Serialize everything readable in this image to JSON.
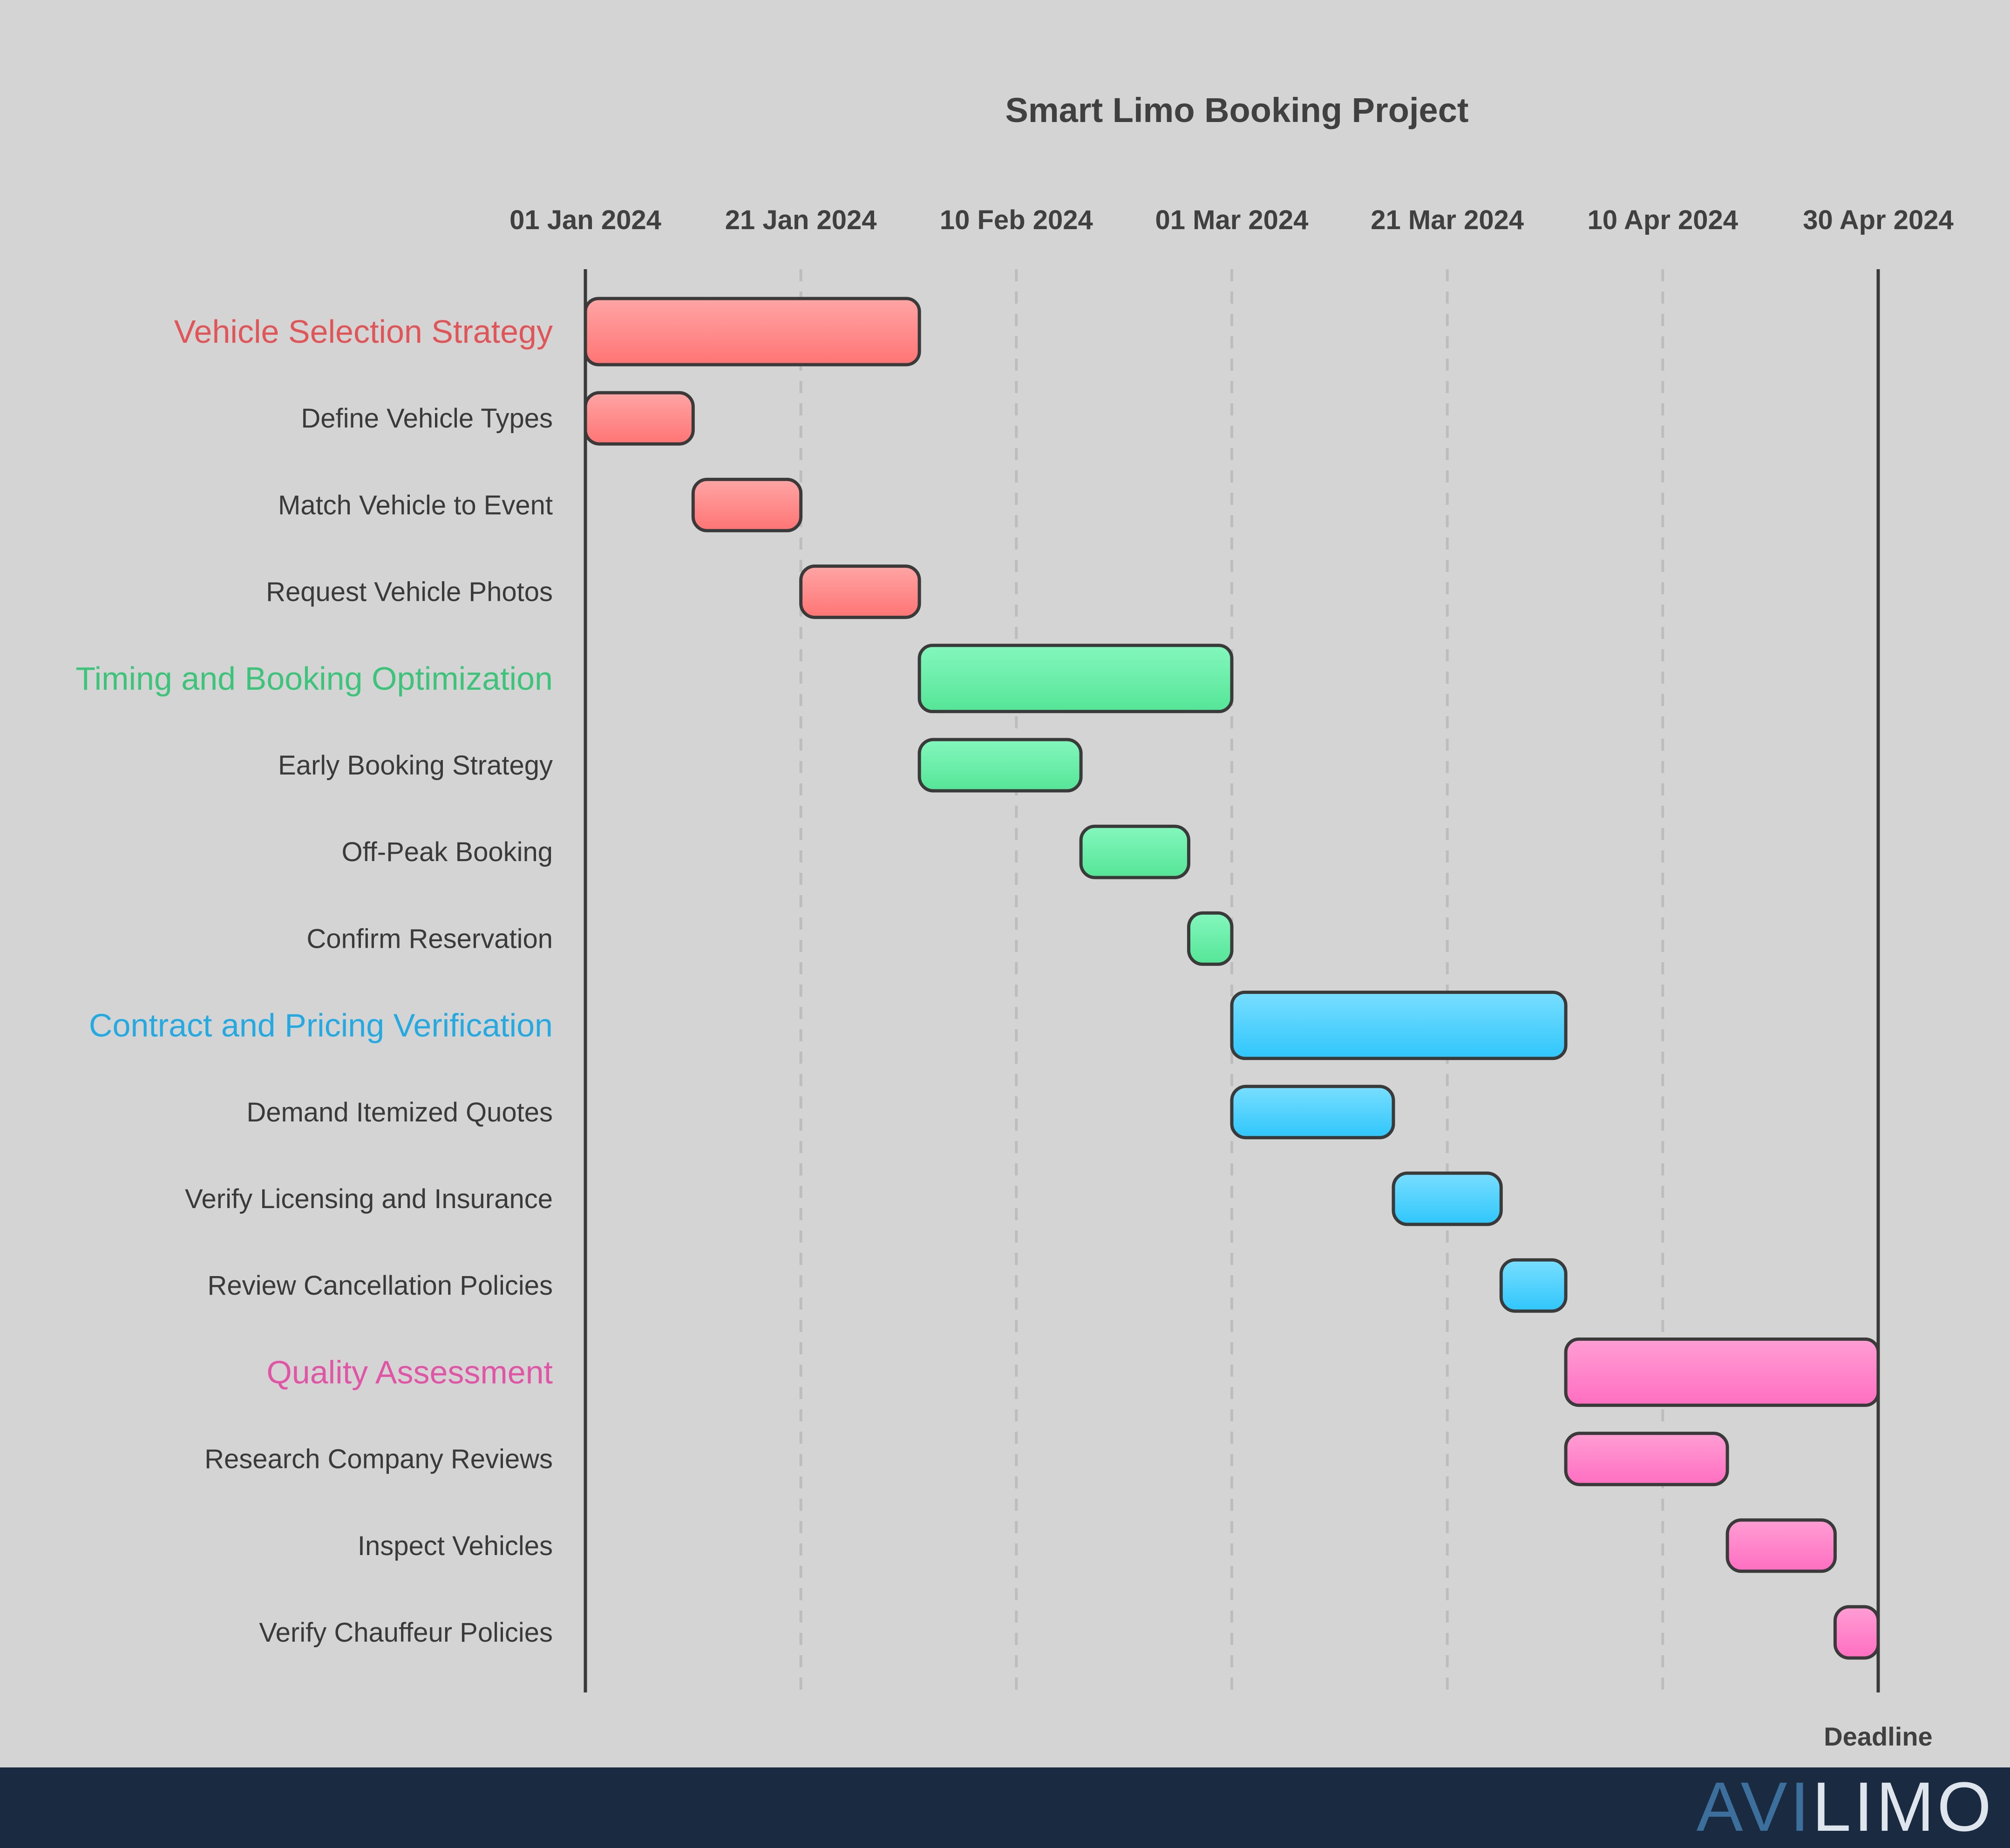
{
  "chart_data": {
    "type": "gantt",
    "title": "Smart Limo Booking Project",
    "x_axis": {
      "type": "date",
      "range": [
        "2024-01-01",
        "2024-04-30"
      ],
      "ticks": [
        "01 Jan 2024",
        "21 Jan 2024",
        "10 Feb 2024",
        "01 Mar 2024",
        "21 Mar 2024",
        "10 Apr 2024",
        "30 Apr 2024"
      ],
      "tick_dates": [
        "2024-01-01",
        "2024-01-21",
        "2024-02-10",
        "2024-03-01",
        "2024-03-21",
        "2024-04-10",
        "2024-04-30"
      ],
      "gridlines": "dashed"
    },
    "deadline": {
      "label": "Deadline",
      "date": "2024-04-30"
    },
    "groups": [
      {
        "name": "Vehicle Selection Strategy",
        "color": "#e05558",
        "fill_top": "#ffa5a5",
        "fill_bottom": "#ff7474",
        "start": "2024-01-01",
        "end": "2024-01-31",
        "tasks": [
          {
            "name": "Define Vehicle Types",
            "start": "2024-01-01",
            "end": "2024-01-10"
          },
          {
            "name": "Match Vehicle to Event",
            "start": "2024-01-11",
            "end": "2024-01-20"
          },
          {
            "name": "Request Vehicle Photos",
            "start": "2024-01-21",
            "end": "2024-01-31"
          }
        ]
      },
      {
        "name": "Timing and Booking Optimization",
        "color": "#3ec37a",
        "fill_top": "#84f7bd",
        "fill_bottom": "#55e597",
        "start": "2024-02-01",
        "end": "2024-02-29",
        "tasks": [
          {
            "name": "Early Booking Strategy",
            "start": "2024-02-01",
            "end": "2024-02-15"
          },
          {
            "name": "Off-Peak Booking",
            "start": "2024-02-16",
            "end": "2024-02-25"
          },
          {
            "name": "Confirm Reservation",
            "start": "2024-02-26",
            "end": "2024-02-29"
          }
        ]
      },
      {
        "name": "Contract and Pricing Verification",
        "color": "#24a9e0",
        "fill_top": "#79deff",
        "fill_bottom": "#2fc6fb",
        "start": "2024-03-01",
        "end": "2024-03-31",
        "tasks": [
          {
            "name": "Demand Itemized Quotes",
            "start": "2024-03-01",
            "end": "2024-03-15"
          },
          {
            "name": "Verify Licensing and Insurance",
            "start": "2024-03-16",
            "end": "2024-03-25"
          },
          {
            "name": "Review Cancellation Policies",
            "start": "2024-03-26",
            "end": "2024-03-31"
          }
        ]
      },
      {
        "name": "Quality Assessment",
        "color": "#e055a5",
        "fill_top": "#ff9ed4",
        "fill_bottom": "#ff6ec1",
        "start": "2024-04-01",
        "end": "2024-04-30",
        "tasks": [
          {
            "name": "Research Company Reviews",
            "start": "2024-04-01",
            "end": "2024-04-15"
          },
          {
            "name": "Inspect Vehicles",
            "start": "2024-04-16",
            "end": "2024-04-25"
          },
          {
            "name": "Verify Chauffeur Policies",
            "start": "2024-04-26",
            "end": "2024-04-30"
          }
        ]
      }
    ]
  },
  "footer": {
    "brand": "AVILIMO",
    "brand_prefix": "AVI",
    "brand_suffix": "LIMO",
    "brand_prefix_color": "#3d6f9c",
    "brand_suffix_color": "#dfe5ec",
    "background": "#1a2a40"
  }
}
